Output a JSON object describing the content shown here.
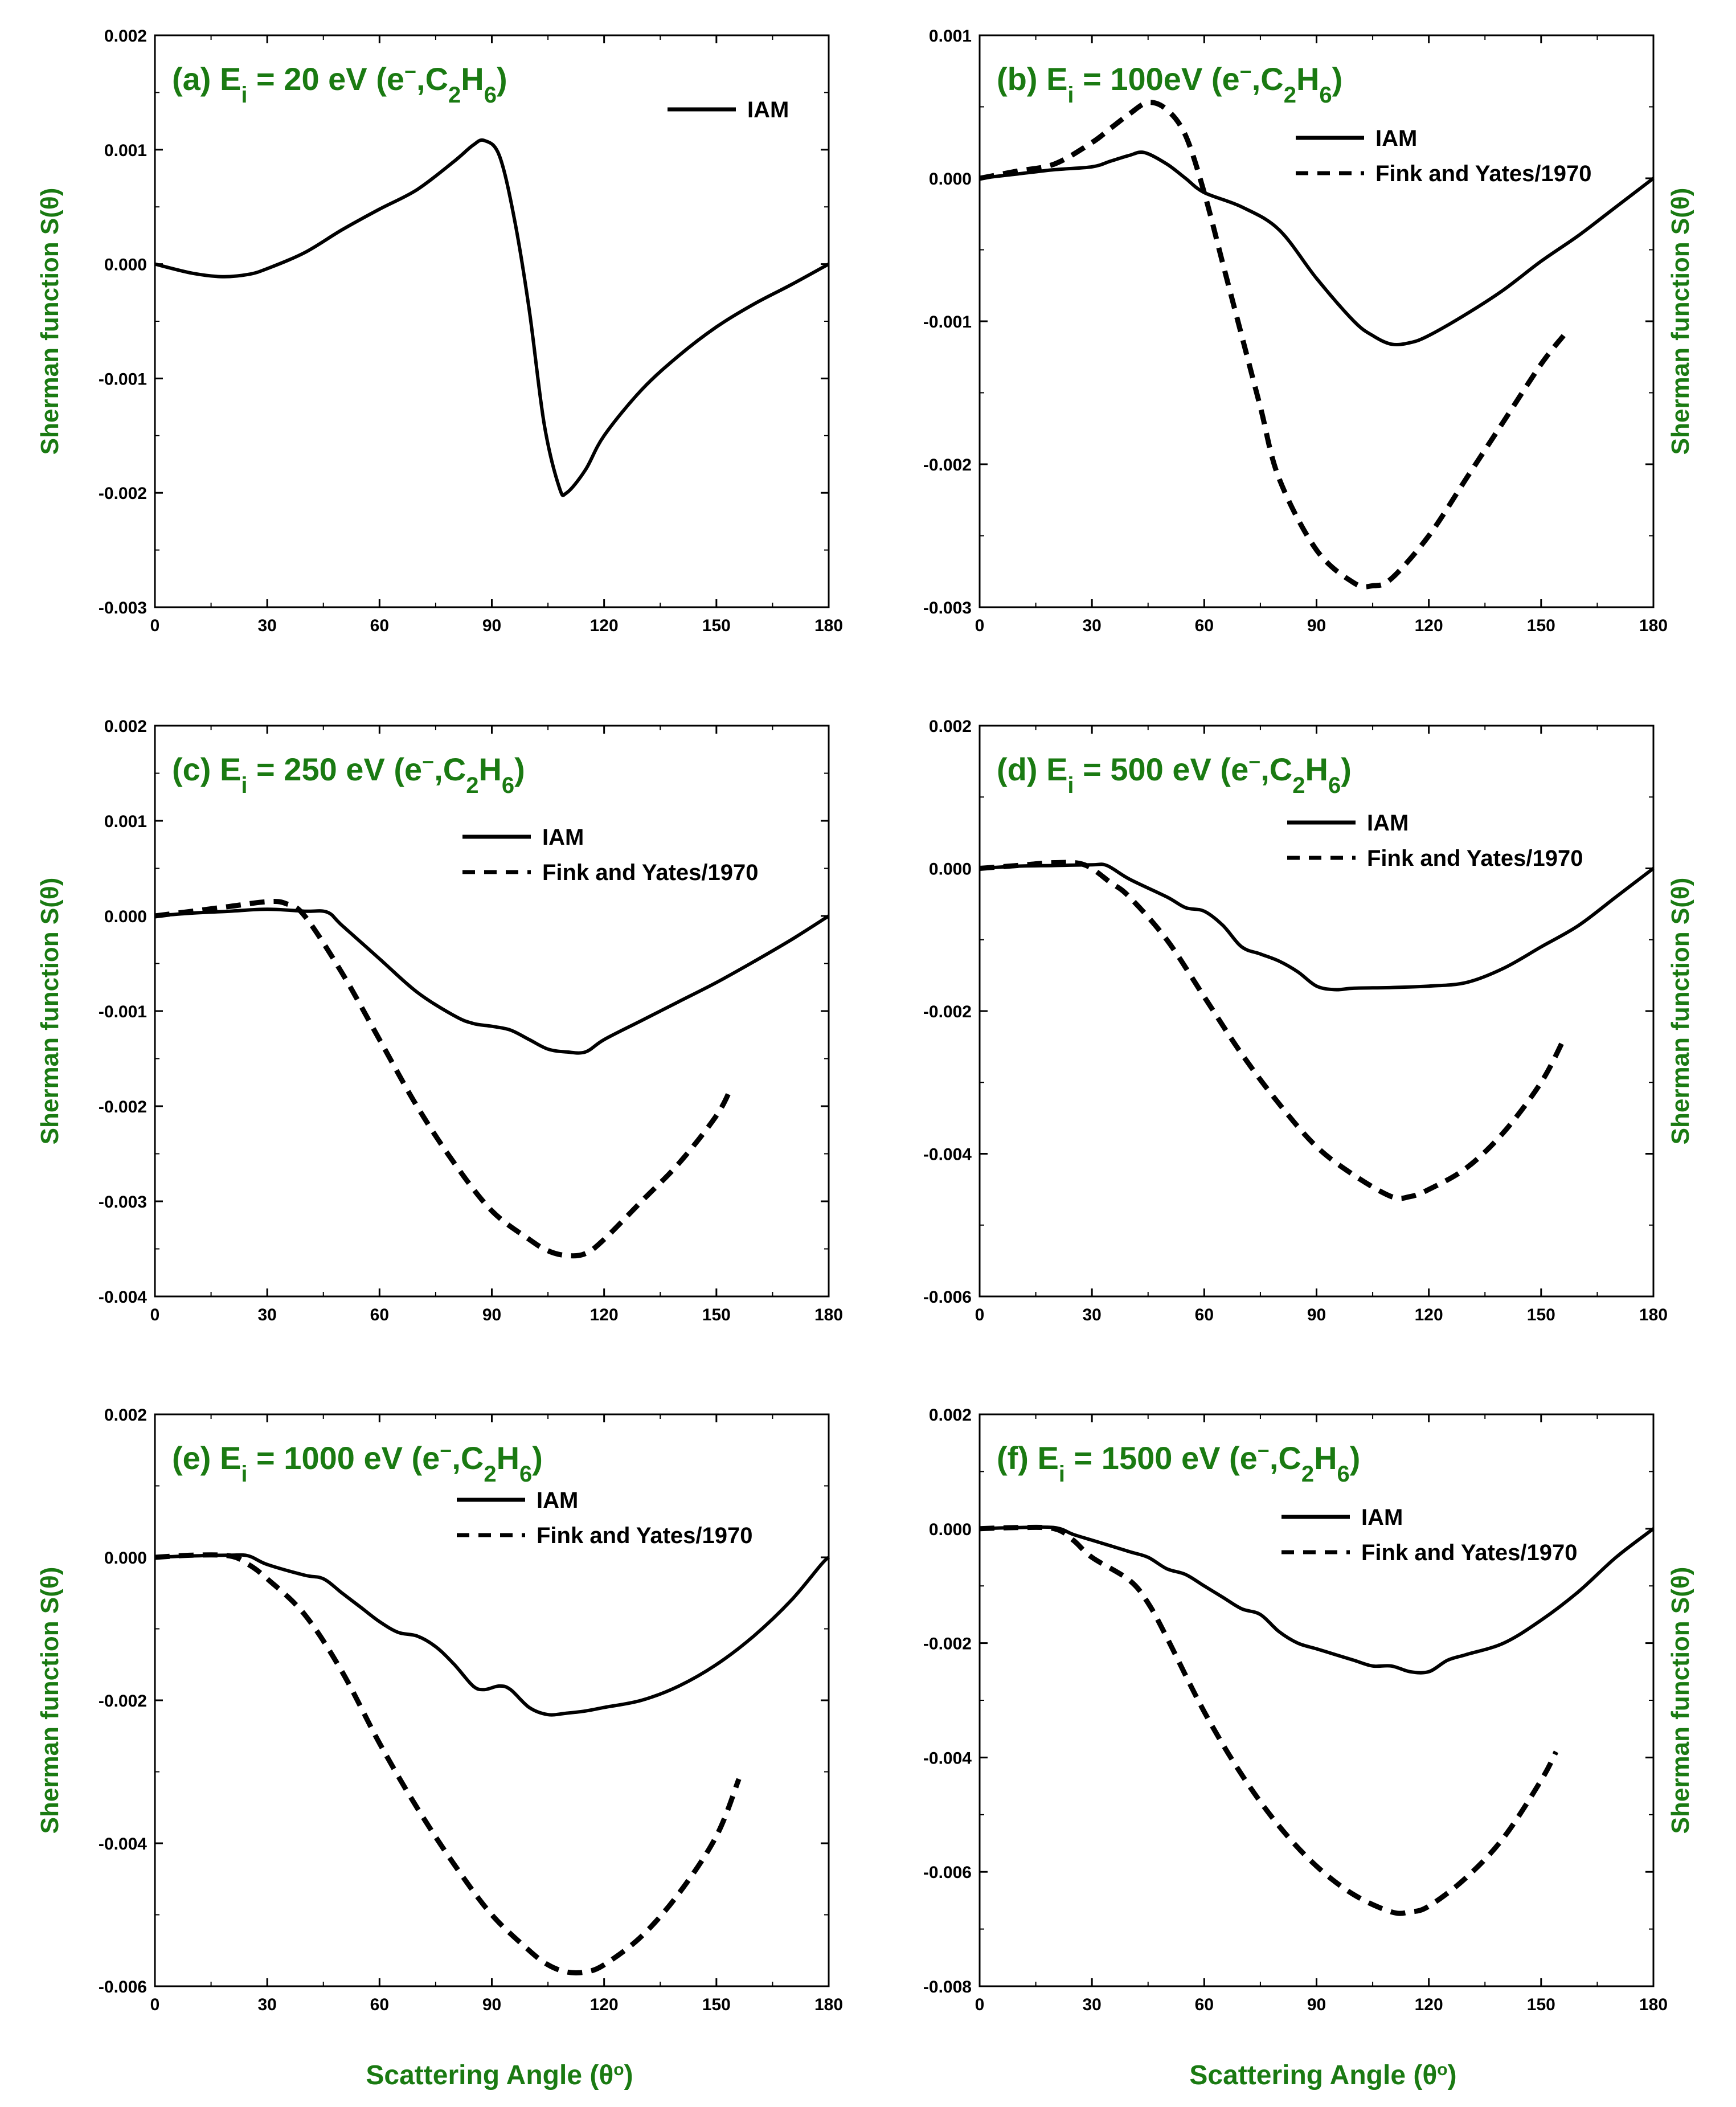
{
  "colors": {
    "title": "#1a7a12",
    "line": "#000000",
    "axis": "#000000"
  },
  "xlabel_main": "Scattering Angle (θ",
  "xlabel_sup": "o",
  "xlabel_end": ")",
  "chart_data": [
    {
      "type": "line",
      "title_prefix": "(a) E",
      "title_sub_i": "i",
      "title_energy": " = 20 eV (e",
      "title_minus": "−",
      "title_mid": ",C",
      "title_sub_2": "2",
      "title_h": "H",
      "title_sub_6": "6",
      "title_end": ")",
      "ylabel": "Sherman function S(θ)",
      "ylabel_side": "left",
      "xlim": [
        0,
        180
      ],
      "ylim": [
        -0.003,
        0.002
      ],
      "xticks": [
        "0",
        "30",
        "60",
        "90",
        "120",
        "150",
        "180"
      ],
      "yticks": [
        "0.002",
        "0.001",
        "0.000",
        "-0.001",
        "-0.002",
        "-0.003"
      ],
      "series": [
        {
          "name": "IAM",
          "style": "solid",
          "x": [
            0,
            10,
            18,
            25,
            30,
            40,
            50,
            60,
            70,
            80,
            85,
            88,
            92,
            96,
            100,
            104,
            108,
            110,
            115,
            120,
            130,
            140,
            150,
            160,
            170,
            180
          ],
          "y": [
            0.0,
            -8e-05,
            -0.00011,
            -9e-05,
            -4e-05,
            0.0001,
            0.0003,
            0.00048,
            0.00065,
            0.0009,
            0.00104,
            0.00108,
            0.00095,
            0.0004,
            -0.0004,
            -0.0014,
            -0.00195,
            -0.002,
            -0.0018,
            -0.0015,
            -0.0011,
            -0.0008,
            -0.00055,
            -0.00035,
            -0.00018,
            0.0
          ]
        }
      ]
    },
    {
      "type": "line",
      "title_prefix": "(b) E",
      "title_sub_i": "i",
      "title_energy": " = 100eV (e",
      "title_minus": "−",
      "title_mid": ",C",
      "title_sub_2": "2",
      "title_h": "H",
      "title_sub_6": "6",
      "title_end": ")",
      "ylabel": "Sherman function S(θ)",
      "ylabel_side": "right",
      "xlim": [
        0,
        180
      ],
      "ylim": [
        -0.003,
        0.001
      ],
      "xticks": [
        "0",
        "30",
        "60",
        "90",
        "120",
        "150",
        "180"
      ],
      "yticks": [
        "0.001",
        "0.000",
        "-0.001",
        "-0.002",
        "-0.003"
      ],
      "series": [
        {
          "name": "IAM",
          "style": "solid",
          "x": [
            0,
            10,
            20,
            30,
            35,
            40,
            44,
            50,
            55,
            60,
            70,
            80,
            90,
            100,
            105,
            110,
            115,
            120,
            130,
            140,
            150,
            160,
            170,
            180
          ],
          "y": [
            0.0,
            3e-05,
            6e-05,
            8e-05,
            0.00012,
            0.00016,
            0.00018,
            0.0001,
            0.0,
            -0.0001,
            -0.0002,
            -0.00036,
            -0.0007,
            -0.001,
            -0.0011,
            -0.00116,
            -0.00115,
            -0.0011,
            -0.00095,
            -0.00078,
            -0.00058,
            -0.0004,
            -0.0002,
            0.0
          ]
        },
        {
          "name": "Fink and Yates/1970",
          "style": "dashed",
          "x": [
            0,
            10,
            20,
            30,
            35,
            40,
            45,
            50,
            55,
            60,
            65,
            70,
            75,
            80,
            90,
            100,
            105,
            110,
            120,
            130,
            140,
            150,
            156
          ],
          "y": [
            0.0,
            5e-05,
            0.0001,
            0.00025,
            0.00035,
            0.00045,
            0.00053,
            0.00048,
            0.0003,
            -0.0001,
            -0.0006,
            -0.0011,
            -0.0016,
            -0.0021,
            -0.0026,
            -0.00283,
            -0.00285,
            -0.0028,
            -0.0025,
            -0.0021,
            -0.0017,
            -0.0013,
            -0.0011
          ]
        }
      ]
    },
    {
      "type": "line",
      "title_prefix": "(c) E",
      "title_sub_i": "i",
      "title_energy": " = 250 eV (e",
      "title_minus": "−",
      "title_mid": ",C",
      "title_sub_2": "2",
      "title_h": "H",
      "title_sub_6": "6",
      "title_end": ")",
      "ylabel": "Sherman function S(θ)",
      "ylabel_side": "left",
      "xlim": [
        0,
        180
      ],
      "ylim": [
        -0.004,
        0.002
      ],
      "xticks": [
        "0",
        "30",
        "60",
        "90",
        "120",
        "150",
        "180"
      ],
      "yticks": [
        "0.002",
        "0.001",
        "0.000",
        "-0.001",
        "-0.002",
        "-0.003",
        "-0.004"
      ],
      "series": [
        {
          "name": "IAM",
          "style": "solid",
          "x": [
            0,
            10,
            20,
            30,
            40,
            46,
            50,
            60,
            70,
            80,
            85,
            90,
            95,
            100,
            105,
            110,
            115,
            120,
            130,
            140,
            150,
            160,
            170,
            180
          ],
          "y": [
            0.0,
            3e-05,
            5e-05,
            7e-05,
            5e-05,
            4e-05,
            -0.0001,
            -0.00045,
            -0.0008,
            -0.00105,
            -0.00113,
            -0.00116,
            -0.0012,
            -0.0013,
            -0.0014,
            -0.00143,
            -0.00143,
            -0.0013,
            -0.0011,
            -0.0009,
            -0.0007,
            -0.00048,
            -0.00025,
            0.0
          ]
        },
        {
          "name": "Fink and Yates/1970",
          "style": "dashed",
          "x": [
            0,
            10,
            20,
            30,
            35,
            40,
            50,
            60,
            70,
            80,
            90,
            100,
            105,
            110,
            115,
            120,
            130,
            140,
            150,
            154
          ],
          "y": [
            0.0,
            5e-05,
            0.0001,
            0.00015,
            0.00013,
            0.0,
            -0.0006,
            -0.0013,
            -0.002,
            -0.0026,
            -0.0031,
            -0.0034,
            -0.00352,
            -0.00357,
            -0.00355,
            -0.0034,
            -0.003,
            -0.0026,
            -0.0021,
            -0.0018
          ]
        }
      ]
    },
    {
      "type": "line",
      "title_prefix": "(d) E",
      "title_sub_i": "i",
      "title_energy": " = 500 eV (e",
      "title_minus": "−",
      "title_mid": ",C",
      "title_sub_2": "2",
      "title_h": "H",
      "title_sub_6": "6",
      "title_end": ")",
      "ylabel": "Sherman function S(θ)",
      "ylabel_side": "right",
      "xlim": [
        0,
        180
      ],
      "ylim": [
        -0.006,
        0.002
      ],
      "xticks": [
        "0",
        "30",
        "60",
        "90",
        "120",
        "150",
        "180"
      ],
      "yticks": [
        "0.002",
        "0.000",
        "-0.002",
        "-0.004",
        "-0.006"
      ],
      "series": [
        {
          "name": "IAM",
          "style": "solid",
          "x": [
            0,
            10,
            20,
            30,
            34,
            40,
            50,
            55,
            60,
            65,
            70,
            75,
            80,
            85,
            90,
            95,
            100,
            110,
            120,
            130,
            140,
            150,
            160,
            170,
            180
          ],
          "y": [
            0.0,
            3e-05,
            4e-05,
            5e-05,
            4e-05,
            -0.00015,
            -0.0004,
            -0.00055,
            -0.0006,
            -0.0008,
            -0.0011,
            -0.0012,
            -0.0013,
            -0.00145,
            -0.00165,
            -0.0017,
            -0.00168,
            -0.00167,
            -0.00165,
            -0.0016,
            -0.0014,
            -0.0011,
            -0.0008,
            -0.0004,
            0.0
          ]
        },
        {
          "name": "Fink and Yates/1970",
          "style": "dashed",
          "x": [
            0,
            10,
            20,
            28,
            35,
            40,
            50,
            60,
            70,
            80,
            90,
            100,
            110,
            115,
            120,
            130,
            140,
            150,
            156
          ],
          "y": [
            0.0,
            4e-05,
            8e-05,
            5e-05,
            -0.0002,
            -0.0004,
            -0.001,
            -0.0018,
            -0.0026,
            -0.0033,
            -0.0039,
            -0.0043,
            -0.0046,
            -0.0046,
            -0.0045,
            -0.0042,
            -0.0037,
            -0.003,
            -0.0024
          ]
        }
      ]
    },
    {
      "type": "line",
      "title_prefix": "(e) E",
      "title_sub_i": "i",
      "title_energy": " = 1000 eV (e",
      "title_minus": "−",
      "title_mid": ",C",
      "title_sub_2": "2",
      "title_h": "H",
      "title_sub_6": "6",
      "title_end": ")",
      "ylabel": "Sherman function S(θ)",
      "ylabel_side": "left",
      "xlim": [
        0,
        180
      ],
      "ylim": [
        -0.006,
        0.002
      ],
      "xticks": [
        "0",
        "30",
        "60",
        "90",
        "120",
        "150",
        "180"
      ],
      "yticks": [
        "0.002",
        "0.000",
        "-0.002",
        "-0.004",
        "-0.006"
      ],
      "series": [
        {
          "name": "IAM",
          "style": "solid",
          "x": [
            0,
            10,
            20,
            25,
            30,
            40,
            45,
            50,
            55,
            60,
            65,
            70,
            75,
            80,
            85,
            88,
            92,
            95,
            100,
            105,
            110,
            115,
            120,
            130,
            140,
            150,
            160,
            170,
            178,
            180
          ],
          "y": [
            0.0,
            2e-05,
            3e-05,
            2e-05,
            -0.0001,
            -0.00025,
            -0.0003,
            -0.0005,
            -0.0007,
            -0.0009,
            -0.00105,
            -0.0011,
            -0.00125,
            -0.0015,
            -0.0018,
            -0.00185,
            -0.0018,
            -0.00185,
            -0.0021,
            -0.0022,
            -0.00218,
            -0.00215,
            -0.0021,
            -0.002,
            -0.0018,
            -0.0015,
            -0.0011,
            -0.0006,
            -0.0001,
            0.0
          ]
        },
        {
          "name": "Fink and Yates/1970",
          "style": "dashed",
          "x": [
            0,
            10,
            20,
            25,
            30,
            40,
            50,
            60,
            70,
            80,
            90,
            100,
            105,
            110,
            115,
            120,
            130,
            140,
            150,
            156
          ],
          "y": [
            0.0,
            3e-05,
            2e-05,
            -0.0001,
            -0.0003,
            -0.0008,
            -0.0016,
            -0.0026,
            -0.0035,
            -0.0043,
            -0.005,
            -0.0055,
            -0.0057,
            -0.0058,
            -0.0058,
            -0.0057,
            -0.0053,
            -0.0047,
            -0.0039,
            -0.0031
          ]
        }
      ]
    },
    {
      "type": "line",
      "title_prefix": "(f) E",
      "title_sub_i": "i",
      "title_energy": " = 1500 eV (e",
      "title_minus": "−",
      "title_mid": ",C",
      "title_sub_2": "2",
      "title_h": "H",
      "title_sub_6": "6",
      "title_end": ")",
      "ylabel": "Sherman function S(θ)",
      "ylabel_side": "right",
      "xlim": [
        0,
        180
      ],
      "ylim": [
        -0.008,
        0.002
      ],
      "xticks": [
        "0",
        "30",
        "60",
        "90",
        "120",
        "150",
        "180"
      ],
      "yticks": [
        "0.002",
        "0.000",
        "-0.002",
        "-0.004",
        "-0.006",
        "-0.008"
      ],
      "series": [
        {
          "name": "IAM",
          "style": "solid",
          "x": [
            0,
            10,
            20,
            25,
            30,
            40,
            45,
            50,
            55,
            60,
            65,
            70,
            75,
            80,
            85,
            90,
            95,
            100,
            105,
            110,
            115,
            120,
            125,
            130,
            140,
            150,
            160,
            170,
            180
          ],
          "y": [
            0.0,
            2e-05,
            2e-05,
            -0.0001,
            -0.0002,
            -0.0004,
            -0.0005,
            -0.0007,
            -0.0008,
            -0.001,
            -0.0012,
            -0.0014,
            -0.0015,
            -0.0018,
            -0.002,
            -0.0021,
            -0.0022,
            -0.0023,
            -0.0024,
            -0.0024,
            -0.0025,
            -0.0025,
            -0.0023,
            -0.0022,
            -0.002,
            -0.0016,
            -0.0011,
            -0.0005,
            0.0
          ]
        },
        {
          "name": "Fink and Yates/1970",
          "style": "dashed",
          "x": [
            0,
            10,
            20,
            25,
            30,
            40,
            45,
            50,
            60,
            70,
            80,
            90,
            100,
            110,
            115,
            120,
            130,
            140,
            150,
            154
          ],
          "y": [
            0.0,
            2e-05,
            0.0,
            -0.0002,
            -0.0005,
            -0.0009,
            -0.0013,
            -0.0019,
            -0.0032,
            -0.0043,
            -0.0052,
            -0.0059,
            -0.0064,
            -0.0067,
            -0.0067,
            -0.0066,
            -0.0061,
            -0.0054,
            -0.0044,
            -0.0039
          ]
        }
      ]
    }
  ]
}
